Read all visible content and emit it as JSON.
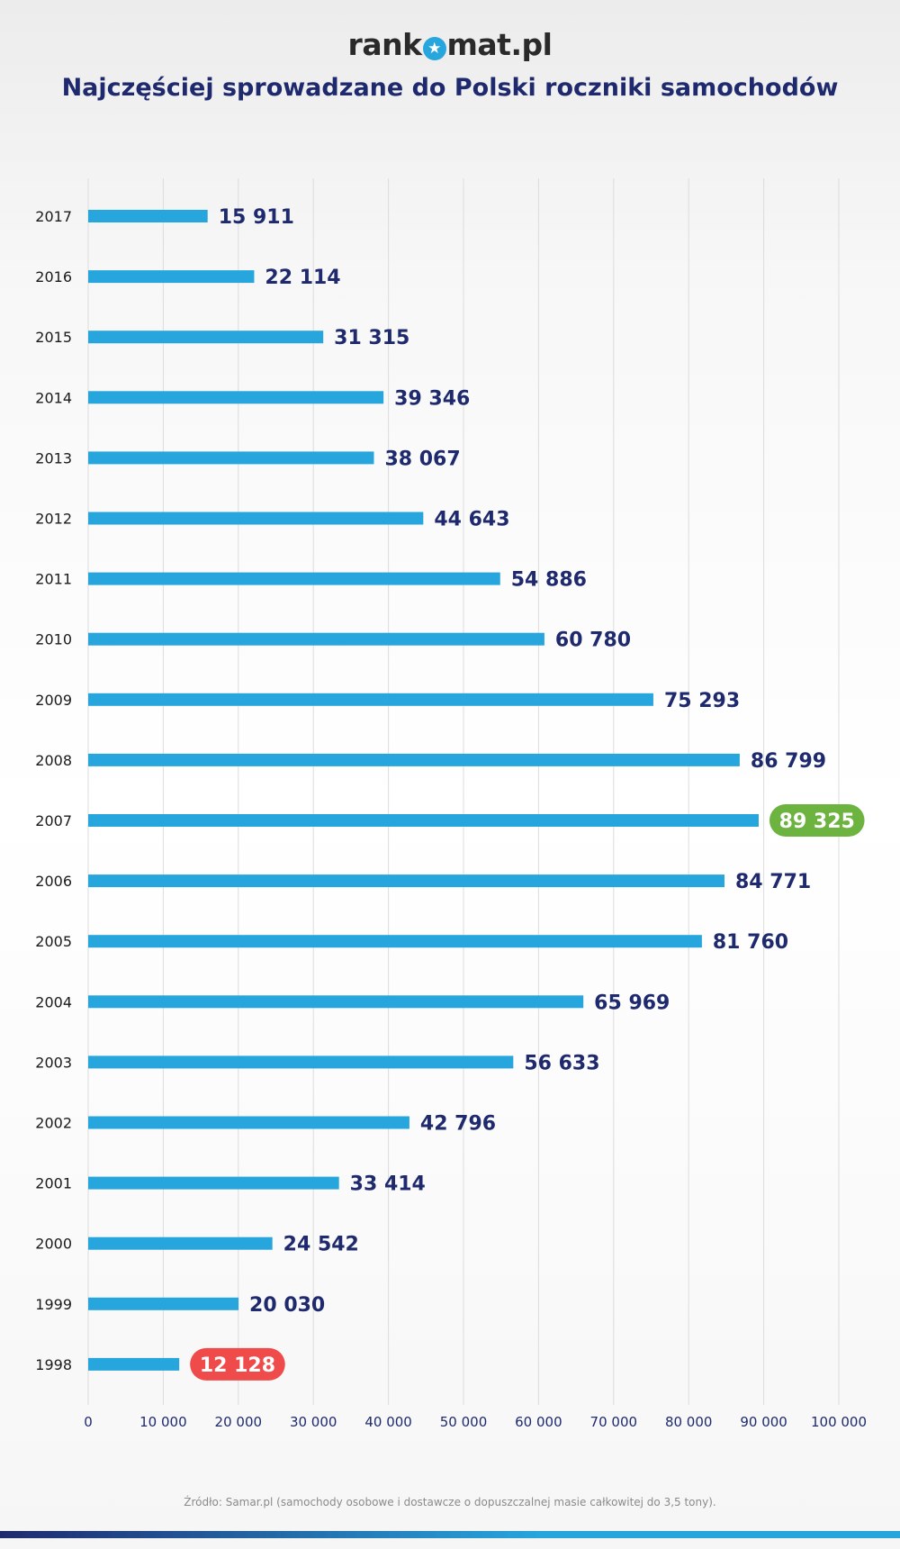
{
  "header": {
    "logo_pre": "rank",
    "logo_post": "mat.pl",
    "title": "Najczęściej sprowadzane do Polski roczniki samochodów"
  },
  "footer": {
    "source": "Źródło: Samar.pl (samochody osobowe i dostawcze o dopuszczalnej masie całkowitej do 3,5 tony)."
  },
  "colors": {
    "bar": "#27a5dd",
    "label": "#1f2a6e",
    "max_badge": "#6db33f",
    "min_badge": "#ef4b4b",
    "grid": "#dcdcdc",
    "axis_text": "#1f2a6e"
  },
  "chart_data": {
    "type": "bar",
    "orientation": "horizontal",
    "categories": [
      "2017",
      "2016",
      "2015",
      "2014",
      "2013",
      "2012",
      "2011",
      "2010",
      "2009",
      "2008",
      "2007",
      "2006",
      "2005",
      "2004",
      "2003",
      "2002",
      "2001",
      "2000",
      "1999",
      "1998"
    ],
    "values": [
      15911,
      22114,
      31315,
      39346,
      38067,
      44643,
      54886,
      60780,
      75293,
      86799,
      89325,
      84771,
      81760,
      65969,
      56633,
      42796,
      33414,
      24542,
      20030,
      12128
    ],
    "value_labels": [
      "15 911",
      "22 114",
      "31 315",
      "39 346",
      "38 067",
      "44 643",
      "54 886",
      "60 780",
      "75 293",
      "86 799",
      "89 325",
      "84 771",
      "81 760",
      "65 969",
      "56 633",
      "42 796",
      "33 414",
      "24 542",
      "20 030",
      "12 128"
    ],
    "highlight_max": "2007",
    "highlight_min": "1998",
    "xlim": [
      0,
      100000
    ],
    "xticks": [
      0,
      10000,
      20000,
      30000,
      40000,
      50000,
      60000,
      70000,
      80000,
      90000,
      100000
    ],
    "xtick_labels": [
      "0",
      "10 000",
      "20 000",
      "30 000",
      "40 000",
      "50 000",
      "60 000",
      "70 000",
      "80 000",
      "90 000",
      "100 000"
    ],
    "grid": "vertical",
    "xlabel": "",
    "ylabel": ""
  }
}
